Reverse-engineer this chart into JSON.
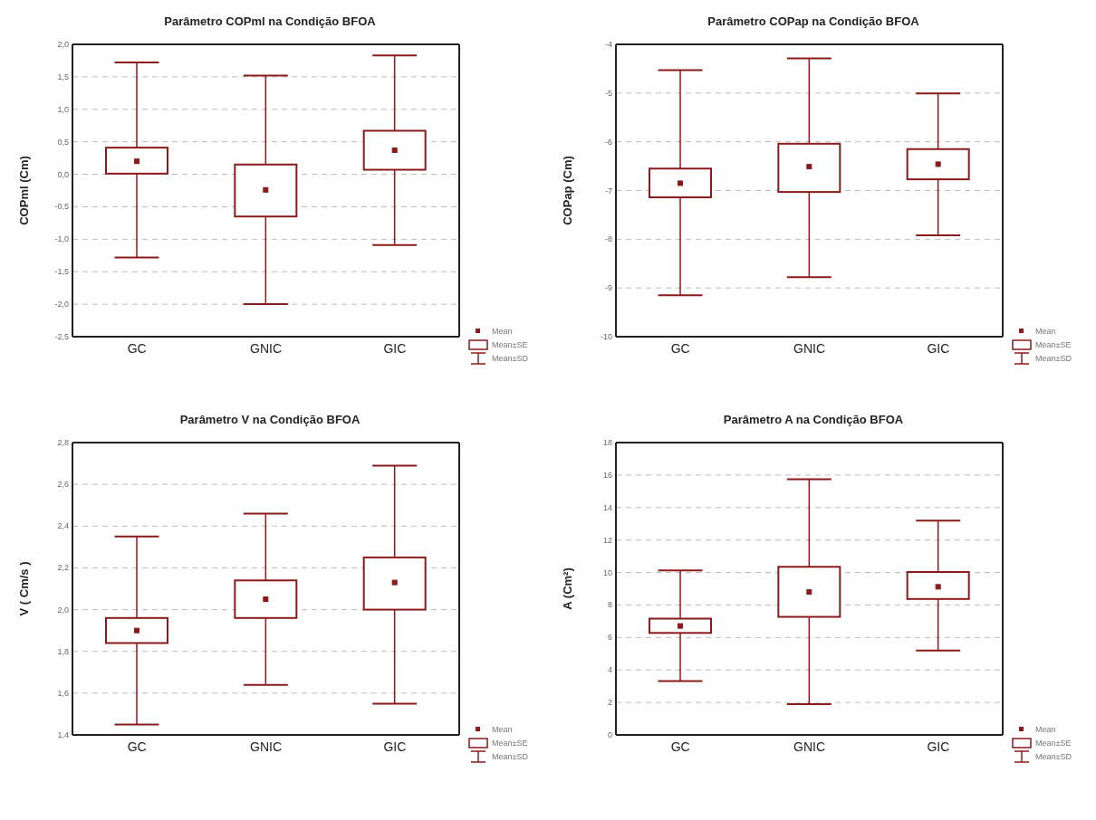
{
  "chart_data": [
    {
      "type": "box",
      "title": "Parâmetro COPml na Condição BFOA",
      "ylabel": "COPml (Cm)",
      "categories": [
        "GC",
        "GNIC",
        "GIC"
      ],
      "color": "#8b1a1a",
      "grid": "y",
      "annotations": [
        "Mean",
        "Mean±SE",
        "Mean±SD"
      ],
      "ylim": [
        -2.5,
        2.0
      ],
      "yticks": [
        {
          "value": -2.5,
          "label": "-2,5"
        },
        {
          "value": -2.0,
          "label": "-2,0"
        },
        {
          "value": -1.5,
          "label": "-1,5"
        },
        {
          "value": -1.0,
          "label": "-1,0"
        },
        {
          "value": -0.5,
          "label": "-0,5"
        },
        {
          "value": 0,
          "label": "0,0"
        },
        {
          "value": 0.5,
          "label": "0,5"
        },
        {
          "value": 1.0,
          "label": "1,0"
        },
        {
          "value": 1.5,
          "label": "1,5"
        },
        {
          "value": 2.0,
          "label": "2,0"
        }
      ],
      "boxes": [
        {
          "low": -1.28,
          "q1": 0.01,
          "median": 0.2,
          "q3": 0.41,
          "high": 1.72
        },
        {
          "low": -2.0,
          "q1": -0.65,
          "median": -0.24,
          "q3": 0.15,
          "high": 1.52
        },
        {
          "low": -1.09,
          "q1": 0.07,
          "median": 0.37,
          "q3": 0.67,
          "high": 1.83
        }
      ]
    },
    {
      "type": "box",
      "title": "Parâmetro COPap na Condição BFOA",
      "ylabel": "COPap (Cm)",
      "categories": [
        "GC",
        "GNIC",
        "GIC"
      ],
      "color": "#8b1a1a",
      "grid": "y",
      "annotations": [
        "Mean",
        "Mean±SE",
        "Mean±SD"
      ],
      "ylim": [
        -10,
        -4
      ],
      "yticks": [
        -10,
        -9,
        -8,
        -7,
        -6,
        -5,
        -4
      ],
      "boxes": [
        {
          "low": -9.15,
          "q1": -7.14,
          "median": -6.85,
          "q3": -6.55,
          "high": -4.53
        },
        {
          "low": -8.78,
          "q1": -7.03,
          "median": -6.51,
          "q3": -6.04,
          "high": -4.29
        },
        {
          "low": -7.92,
          "q1": -6.77,
          "median": -6.46,
          "q3": -6.15,
          "high": -5.01
        }
      ]
    },
    {
      "type": "box",
      "title": "Parâmetro V na Condição BFOA",
      "ylabel": "V ( Cm/s )",
      "categories": [
        "GC",
        "GNIC",
        "GIC"
      ],
      "color": "#8b1a1a",
      "grid": "y",
      "annotations": [
        "Mean",
        "Mean±SE",
        "Mean±SD"
      ],
      "ylim": [
        1.4,
        2.8
      ],
      "yticks": [
        {
          "value": 1.4,
          "label": "1,4"
        },
        {
          "value": 1.6,
          "label": "1,6"
        },
        {
          "value": 1.8,
          "label": "1,8"
        },
        {
          "value": 2.0,
          "label": "2,0"
        },
        {
          "value": 2.2,
          "label": "2,2"
        },
        {
          "value": 2.4,
          "label": "2,4"
        },
        {
          "value": 2.6,
          "label": "2,6"
        },
        {
          "value": 2.8,
          "label": "2,8"
        }
      ],
      "boxes": [
        {
          "low": 1.45,
          "q1": 1.84,
          "median": 1.9,
          "q3": 1.96,
          "high": 2.35
        },
        {
          "low": 1.64,
          "q1": 1.96,
          "median": 2.05,
          "q3": 2.14,
          "high": 2.46
        },
        {
          "low": 1.55,
          "q1": 2.0,
          "median": 2.13,
          "q3": 2.25,
          "high": 2.69
        }
      ]
    },
    {
      "type": "box",
      "title": "Parâmetro A na Condição BFOA",
      "ylabel": "A (Cm²)",
      "categories": [
        "GC",
        "GNIC",
        "GIC"
      ],
      "color": "#8b1a1a",
      "grid": "y",
      "annotations": [
        "Mean",
        "Mean±SE",
        "Mean±SD"
      ],
      "ylim": [
        0,
        18
      ],
      "yticks": [
        0,
        2,
        4,
        6,
        8,
        10,
        12,
        14,
        16,
        18
      ],
      "boxes": [
        {
          "low": 3.32,
          "q1": 6.28,
          "median": 6.71,
          "q3": 7.16,
          "high": 10.13
        },
        {
          "low": 1.9,
          "q1": 7.27,
          "median": 8.8,
          "q3": 10.35,
          "high": 15.74
        },
        {
          "low": 5.2,
          "q1": 8.37,
          "median": 9.12,
          "q3": 10.03,
          "high": 13.19
        }
      ]
    }
  ]
}
